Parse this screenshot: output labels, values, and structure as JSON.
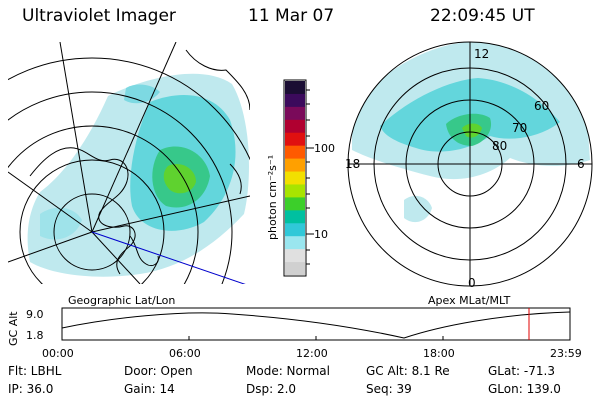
{
  "header": {
    "title": "Ultraviolet Imager",
    "date": "11 Mar 07",
    "time": "22:09:45 UT"
  },
  "colorbar": {
    "unit_label": "photon cm⁻²s⁻¹",
    "ticks": [
      "100",
      "10"
    ],
    "colors": [
      "#1a0d33",
      "#3b0a5c",
      "#7a0a5a",
      "#b00030",
      "#e01010",
      "#ff5a00",
      "#ffa000",
      "#f2e000",
      "#a8e400",
      "#3ccf2a",
      "#00c0a0",
      "#30c8d8",
      "#9ae6ef",
      "#e0e0e0",
      "#d0d0d0"
    ]
  },
  "left_map": {
    "caption": "Geographic Lat/Lon"
  },
  "right_map": {
    "caption": "Apex MLat/MLT",
    "mlt_labels": {
      "top": "12",
      "left": "18",
      "right": "6",
      "bottom": "0"
    },
    "lat_labels": [
      "60",
      "70",
      "80"
    ]
  },
  "timeline": {
    "ylabel": "GC Alt",
    "y_ticks": [
      "9.0",
      "1.8"
    ],
    "x_ticks": [
      "00:00",
      "06:00",
      "12:00",
      "18:00",
      "23:59"
    ],
    "marker_color": "#e00000"
  },
  "footer": {
    "flt": "Flt: LBHL",
    "ip": "IP: 36.0",
    "door": "Door: Open",
    "gain": "Gain: 14",
    "mode": "Mode: Normal",
    "dsp": "Dsp:    2.0",
    "gc_alt": "GC Alt: 8.1 Re",
    "seq": "Seq: 39",
    "glat": "GLat: -71.3",
    "glon": "GLon: 139.0"
  }
}
